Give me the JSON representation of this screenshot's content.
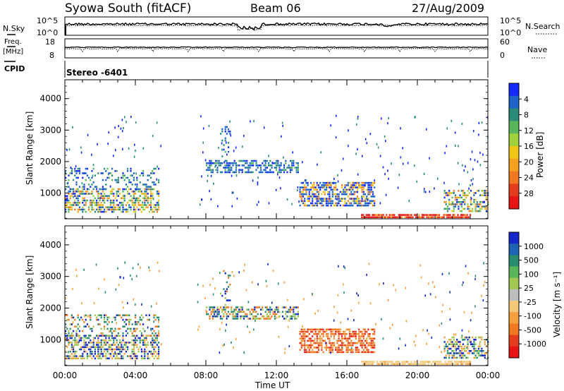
{
  "header": {
    "station": "Syowa South (fitACF)",
    "beam": "Beam 06",
    "date": "27/Aug/2009"
  },
  "panels": {
    "nsky": {
      "left_label": "N.Sky",
      "right_label": "N.Search",
      "left_ticks": [
        "10^5",
        "10^0"
      ],
      "right_ticks": [
        "10^5",
        "10^0"
      ]
    },
    "freq": {
      "left_label_line1": "Freq.",
      "left_label_line2": "[MHz]",
      "right_label": "Nave",
      "left_ticks": [
        "18",
        "8"
      ],
      "right_ticks": [
        "60",
        "0"
      ]
    },
    "cpid": {
      "label": "CPID",
      "value": "Stereo -6401"
    }
  },
  "chart_data": [
    {
      "type": "heatmap",
      "title": "",
      "xlabel": "",
      "ylabel": "Slant Range [km]",
      "x_ticks": [
        "00:00",
        "04:00",
        "08:00",
        "12:00",
        "16:00",
        "20:00",
        "00:00"
      ],
      "xlim_hours": [
        0,
        24
      ],
      "ylim": [
        180,
        4600
      ],
      "y_ticks": [
        1000,
        2000,
        3000,
        4000
      ],
      "colorbar": {
        "label": "Power [dB]",
        "ticks": [
          "4",
          "8",
          "12",
          "16",
          "20",
          "24",
          "28"
        ],
        "colors": [
          "#1428ff",
          "#1e64c8",
          "#2a8c78",
          "#5ab45a",
          "#a0d23c",
          "#f0c814",
          "#f5a01e",
          "#f07820",
          "#e63c1e",
          "#e61414"
        ]
      },
      "echo_regions": [
        {
          "t0": 0.0,
          "t1": 5.2,
          "r0": 400,
          "r1": 1100,
          "value": "mixed"
        },
        {
          "t0": 0.0,
          "t1": 5.3,
          "r0": 1100,
          "r1": 1800,
          "value": "weak"
        },
        {
          "t0": 8.0,
          "t1": 13.2,
          "r0": 1650,
          "r1": 2050,
          "value": "weak"
        },
        {
          "t0": 13.3,
          "t1": 17.5,
          "r0": 600,
          "r1": 1350,
          "value": "strong-low-range"
        },
        {
          "t0": 16.8,
          "t1": 23.0,
          "r0": 180,
          "r1": 330,
          "value": "very-strong"
        },
        {
          "t0": 21.5,
          "t1": 24.0,
          "r0": 450,
          "r1": 1100,
          "value": "mixed"
        }
      ]
    },
    {
      "type": "heatmap",
      "title": "",
      "xlabel": "Time UT",
      "ylabel": "Slant Range [km]",
      "x_ticks": [
        "00:00",
        "04:00",
        "08:00",
        "12:00",
        "16:00",
        "20:00",
        "00:00"
      ],
      "xlim_hours": [
        0,
        24
      ],
      "ylim": [
        180,
        4600
      ],
      "y_ticks": [
        1000,
        2000,
        3000,
        4000
      ],
      "colorbar": {
        "label": "Velocity [m s⁻¹]",
        "ticks": [
          "1000",
          "500",
          "100",
          "25",
          "-25",
          "-100",
          "-500",
          "-1000"
        ],
        "colors": [
          "#1428c8",
          "#1e64b4",
          "#2a8c6e",
          "#5ab45a",
          "#a0c850",
          "#bebebe",
          "#f5c878",
          "#f5a03c",
          "#f07820",
          "#e63c1e",
          "#e61414"
        ]
      },
      "echo_regions": [
        {
          "t0": 0.0,
          "t1": 5.2,
          "r0": 400,
          "r1": 1100,
          "value": "mixed"
        },
        {
          "t0": 0.0,
          "t1": 5.3,
          "r0": 1100,
          "r1": 1800,
          "value": "mostly-negative"
        },
        {
          "t0": 8.0,
          "t1": 13.2,
          "r0": 1650,
          "r1": 2050,
          "value": "mixed"
        },
        {
          "t0": 13.3,
          "t1": 17.5,
          "r0": 600,
          "r1": 1350,
          "value": "negative"
        },
        {
          "t0": 16.8,
          "t1": 23.0,
          "r0": 180,
          "r1": 330,
          "value": "-100"
        },
        {
          "t0": 21.5,
          "t1": 24.0,
          "r0": 450,
          "r1": 1100,
          "value": "mixed"
        }
      ]
    }
  ]
}
